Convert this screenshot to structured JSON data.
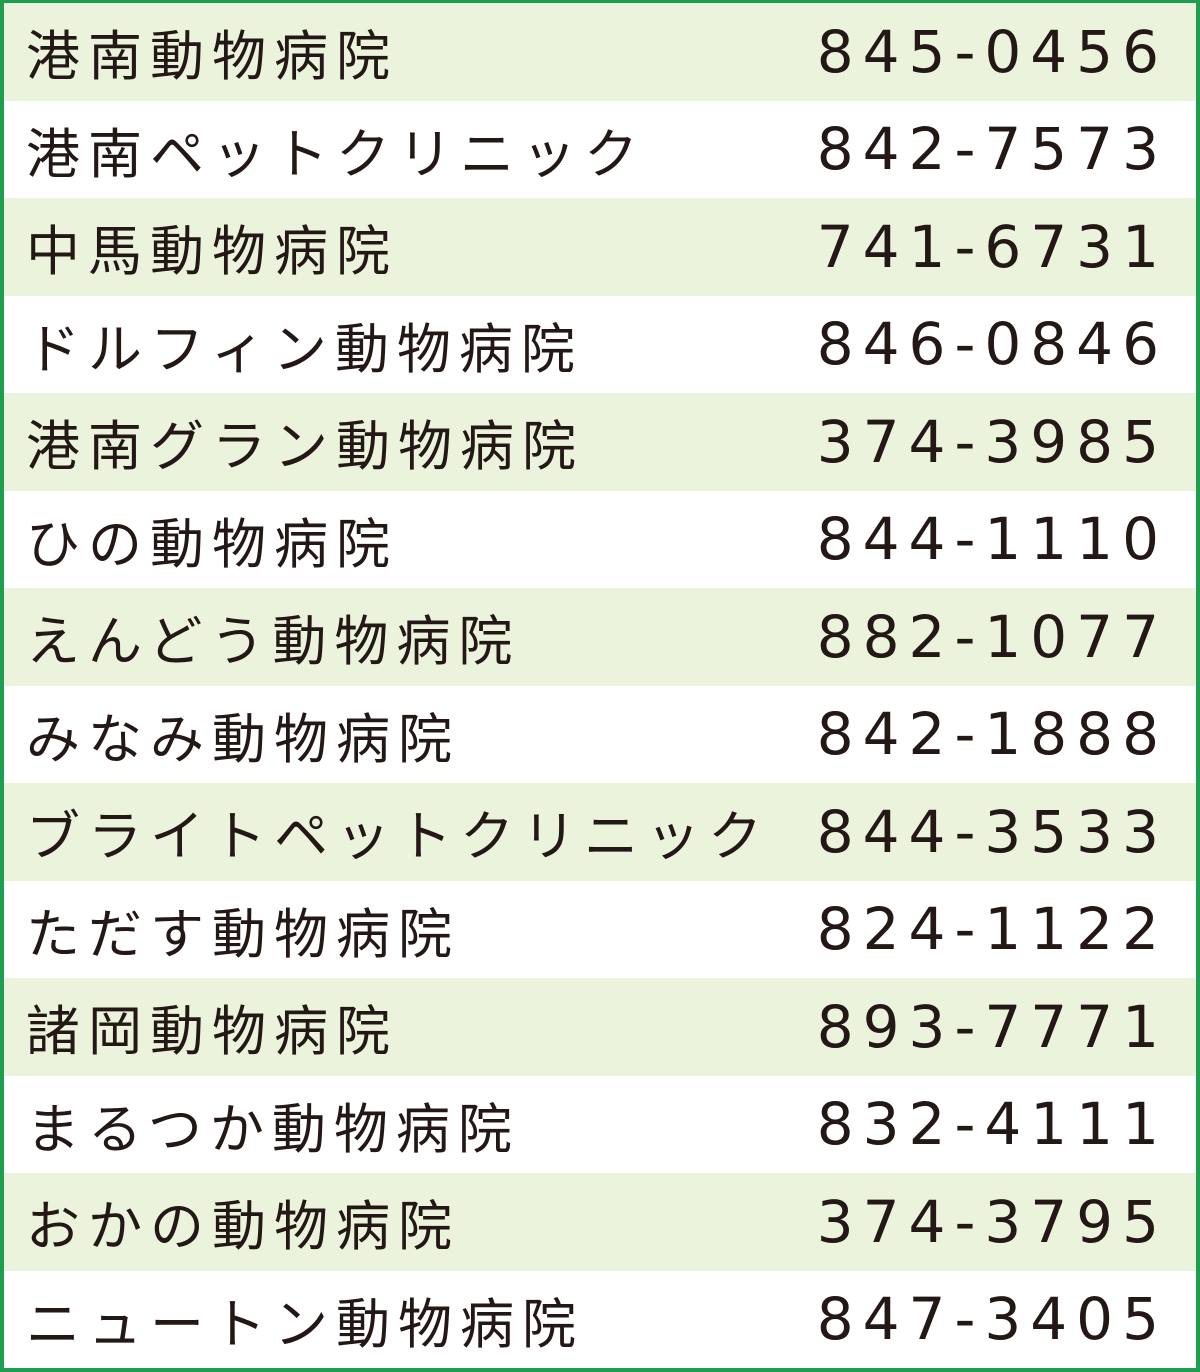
{
  "rows": [
    {
      "name": "港南動物病院",
      "phone": "845-0456"
    },
    {
      "name": "港南ペットクリニック",
      "phone": "842-7573"
    },
    {
      "name": "中馬動物病院",
      "phone": "741-6731"
    },
    {
      "name": "ドルフィン動物病院",
      "phone": "846-0846"
    },
    {
      "name": "港南グラン動物病院",
      "phone": "374-3985"
    },
    {
      "name": "ひの動物病院",
      "phone": "844-1110"
    },
    {
      "name": "えんどう動物病院",
      "phone": "882-1077"
    },
    {
      "name": "みなみ動物病院",
      "phone": "842-1888"
    },
    {
      "name": "ブライトペットクリニック",
      "phone": "844-3533"
    },
    {
      "name": "ただす動物病院",
      "phone": "824-1122"
    },
    {
      "name": "諸岡動物病院",
      "phone": "893-7771"
    },
    {
      "name": "まるつか動物病院",
      "phone": "832-4111"
    },
    {
      "name": "おかの動物病院",
      "phone": "374-3795"
    },
    {
      "name": "ニュートン動物病院",
      "phone": "847-3405"
    }
  ],
  "colors": {
    "border": "#1f9e4f",
    "stripe": "#ebf3dc",
    "text": "#231815"
  }
}
